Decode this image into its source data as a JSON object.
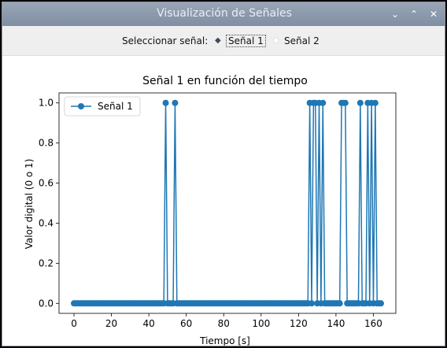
{
  "window": {
    "title": "Visualización de Señales"
  },
  "controls": {
    "label": "Seleccionar señal:",
    "options": [
      {
        "label": "Señal 1",
        "selected": true
      },
      {
        "label": "Señal 2",
        "selected": false
      }
    ]
  },
  "colors": {
    "line": "#1f77b4"
  },
  "chart_data": {
    "type": "line",
    "title": "Señal 1 en función del tiempo",
    "xlabel": "Tiempo [s]",
    "ylabel": "Valor digital (0 o 1)",
    "xlim": [
      -8,
      172
    ],
    "ylim": [
      -0.05,
      1.05
    ],
    "xticks": [
      0,
      20,
      40,
      60,
      80,
      100,
      120,
      140,
      160
    ],
    "yticks": [
      0.0,
      0.2,
      0.4,
      0.6,
      0.8,
      1.0
    ],
    "ytick_labels": [
      "0.0",
      "0.2",
      "0.4",
      "0.6",
      "0.8",
      "1.0"
    ],
    "legend": {
      "position": "top-left",
      "entries": [
        "Señal 1"
      ]
    },
    "series": [
      {
        "name": "Señal 1",
        "x": [
          0,
          1,
          2,
          3,
          4,
          5,
          6,
          7,
          8,
          9,
          10,
          11,
          12,
          13,
          14,
          15,
          16,
          17,
          18,
          19,
          20,
          21,
          22,
          23,
          24,
          25,
          26,
          27,
          28,
          29,
          30,
          31,
          32,
          33,
          34,
          35,
          36,
          37,
          38,
          39,
          40,
          41,
          42,
          43,
          44,
          45,
          46,
          47,
          48,
          49,
          50,
          51,
          52,
          53,
          54,
          55,
          56,
          57,
          58,
          59,
          60,
          61,
          62,
          63,
          64,
          65,
          66,
          67,
          68,
          69,
          70,
          71,
          72,
          73,
          74,
          75,
          76,
          77,
          78,
          79,
          80,
          81,
          82,
          83,
          84,
          85,
          86,
          87,
          88,
          89,
          90,
          91,
          92,
          93,
          94,
          95,
          96,
          97,
          98,
          99,
          100,
          101,
          102,
          103,
          104,
          105,
          106,
          107,
          108,
          109,
          110,
          111,
          112,
          113,
          114,
          115,
          116,
          117,
          118,
          119,
          120,
          121,
          122,
          123,
          124,
          125,
          126,
          127,
          128,
          129,
          130,
          131,
          132,
          133,
          134,
          135,
          136,
          137,
          138,
          139,
          140,
          141,
          142,
          143,
          144,
          145,
          146,
          147,
          148,
          149,
          150,
          151,
          152,
          153,
          154,
          155,
          156,
          157,
          158,
          159,
          160,
          161,
          162,
          163,
          164
        ],
        "y": [
          0,
          0,
          0,
          0,
          0,
          0,
          0,
          0,
          0,
          0,
          0,
          0,
          0,
          0,
          0,
          0,
          0,
          0,
          0,
          0,
          0,
          0,
          0,
          0,
          0,
          0,
          0,
          0,
          0,
          0,
          0,
          0,
          0,
          0,
          0,
          0,
          0,
          0,
          0,
          0,
          0,
          0,
          0,
          0,
          0,
          0,
          0,
          0,
          0,
          1,
          0,
          0,
          0,
          0,
          1,
          0,
          0,
          0,
          0,
          0,
          0,
          0,
          0,
          0,
          0,
          0,
          0,
          0,
          0,
          0,
          0,
          0,
          0,
          0,
          0,
          0,
          0,
          0,
          0,
          0,
          0,
          0,
          0,
          0,
          0,
          0,
          0,
          0,
          0,
          0,
          0,
          0,
          0,
          0,
          0,
          0,
          0,
          0,
          0,
          0,
          0,
          0,
          0,
          0,
          0,
          0,
          0,
          0,
          0,
          0,
          0,
          0,
          0,
          0,
          0,
          0,
          0,
          0,
          0,
          0,
          0,
          0,
          0,
          0,
          0,
          0,
          1,
          0,
          1,
          1,
          0,
          1,
          0,
          1,
          0,
          0,
          0,
          0,
          0,
          0,
          0,
          0,
          0,
          1,
          1,
          1,
          0,
          0,
          0,
          0,
          0,
          0,
          0,
          1,
          0,
          0,
          0,
          1,
          0,
          1,
          0,
          1,
          0,
          0,
          0
        ]
      }
    ]
  }
}
